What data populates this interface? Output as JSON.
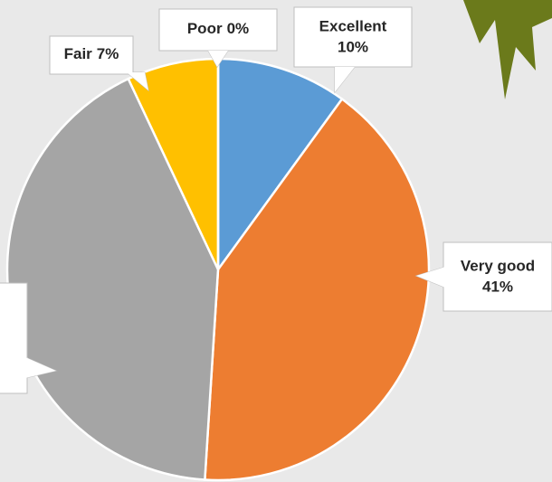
{
  "chart_data": {
    "type": "pie",
    "categories": [
      "Excellent",
      "Very good",
      null,
      "Fair",
      "Poor"
    ],
    "values": [
      10,
      41,
      42,
      7,
      0
    ],
    "value_labels": [
      "10%",
      "41%",
      null,
      "7%",
      "0%"
    ],
    "colors": [
      "#5b9bd5",
      "#ed7d31",
      "#a5a5a5",
      "#ffc000",
      "#4472c4"
    ]
  }
}
